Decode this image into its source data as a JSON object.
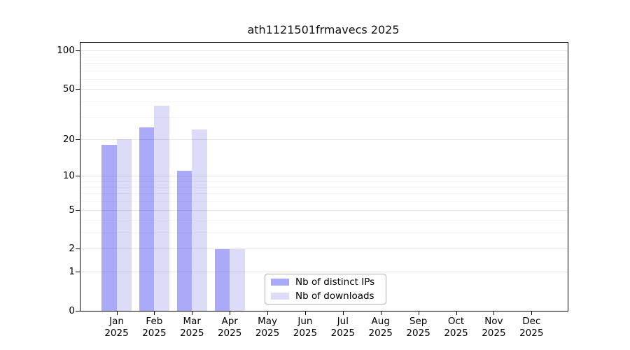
{
  "title": "ath1121501frmavecs 2025",
  "chart_data": {
    "type": "bar",
    "title": "ath1121501frmavecs 2025",
    "categories": [
      "Jan 2025",
      "Feb 2025",
      "Mar 2025",
      "Apr 2025",
      "May 2025",
      "Jun 2025",
      "Jul 2025",
      "Aug 2025",
      "Sep 2025",
      "Oct 2025",
      "Nov 2025",
      "Dec 2025"
    ],
    "series": [
      {
        "name": "Nb of distinct IPs",
        "color": "#aaaaf8",
        "values": [
          18,
          25,
          11,
          2,
          0,
          0,
          0,
          0,
          0,
          0,
          0,
          0
        ]
      },
      {
        "name": "Nb of downloads",
        "color": "#dcdcf8",
        "values": [
          20,
          37,
          24,
          2,
          0,
          0,
          0,
          0,
          0,
          0,
          0,
          0
        ]
      }
    ],
    "xlabel": "",
    "ylabel": "",
    "y_scale": "log10(value+1)",
    "y_major_ticks": [
      0,
      1,
      2,
      5,
      10,
      20,
      50,
      100
    ],
    "y_minor_gridlines": [
      3,
      4,
      6,
      7,
      8,
      9,
      30,
      40,
      60,
      70,
      80,
      90
    ],
    "ylim": [
      0,
      115
    ],
    "grid": "horizontal, drawn over bars",
    "legend_position": "inside bottom-center"
  },
  "colors": {
    "bar_distinct_ips": "#aaaaf8",
    "bar_downloads": "#dcdcf8",
    "axis": "#000000",
    "grid_major": "#e6e6e6",
    "grid_minor": "#f3f3f3",
    "legend_border": "#b0b0b0"
  }
}
